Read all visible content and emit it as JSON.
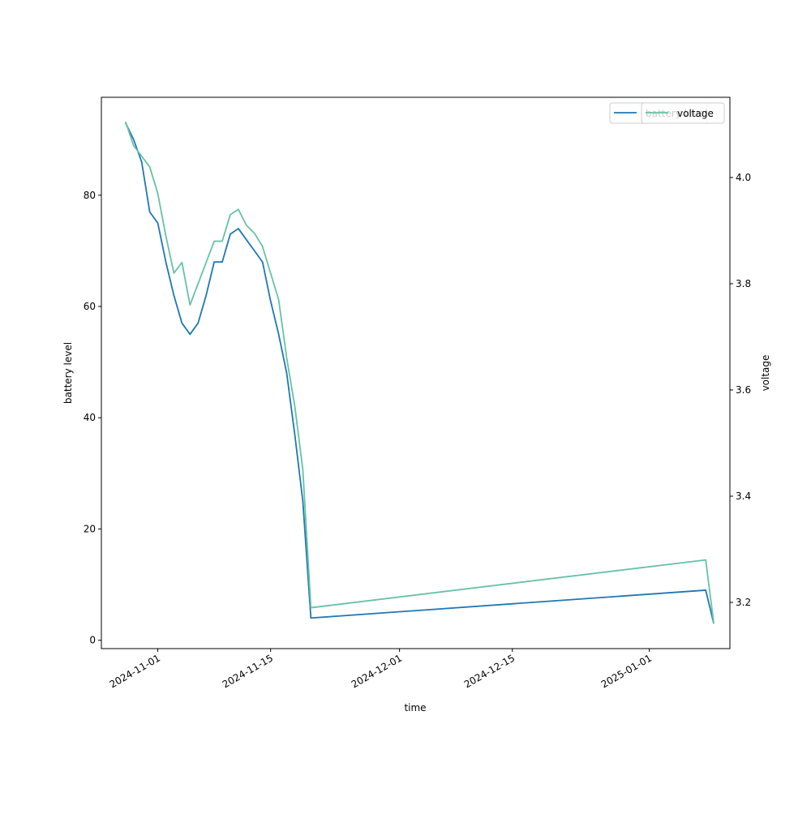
{
  "chart_data": {
    "type": "line",
    "xlabel": "time",
    "ylabel": "battery level",
    "y2label": "voltage",
    "x": [
      "2024-10-28",
      "2024-10-29",
      "2024-10-30",
      "2024-10-31",
      "2024-11-01",
      "2024-11-02",
      "2024-11-03",
      "2024-11-04",
      "2024-11-05",
      "2024-11-06",
      "2024-11-07",
      "2024-11-08",
      "2024-11-09",
      "2024-11-10",
      "2024-11-11",
      "2024-11-12",
      "2024-11-13",
      "2024-11-14",
      "2024-11-15",
      "2024-11-16",
      "2024-11-17",
      "2024-11-18",
      "2024-11-19",
      "2024-11-20",
      "2025-01-08",
      "2025-01-09"
    ],
    "series": [
      {
        "name": "battery level",
        "color": "#1f77b4",
        "axis": "y",
        "values": [
          93,
          90,
          86,
          77,
          75,
          68,
          62,
          57,
          55,
          57,
          62,
          68,
          68,
          73,
          74,
          72,
          70,
          68,
          61,
          55,
          48,
          37,
          25,
          4,
          9,
          3
        ]
      },
      {
        "name": "voltage",
        "color": "#66c2a5",
        "axis": "y2",
        "values": [
          4.105,
          4.06,
          4.04,
          4.02,
          3.97,
          3.89,
          3.82,
          3.84,
          3.76,
          3.8,
          3.84,
          3.88,
          3.88,
          3.93,
          3.94,
          3.91,
          3.895,
          3.87,
          3.82,
          3.77,
          3.66,
          3.57,
          3.45,
          3.19,
          3.28,
          3.16
        ]
      }
    ],
    "xlim": [
      "2024-10-25",
      "2025-01-11"
    ],
    "xticks": [
      "2024-11-01",
      "2024-11-15",
      "2024-12-01",
      "2024-12-15",
      "2025-01-01"
    ],
    "ylim": [
      -1.5,
      97.6
    ],
    "yticks": [
      0,
      20,
      40,
      60,
      80
    ],
    "y2lim": [
      3.113,
      4.151
    ],
    "y2ticks": [
      3.2,
      3.4,
      3.6,
      3.8,
      {
        "value": 4,
        "label": "4.0"
      }
    ],
    "legend": "upper right"
  }
}
